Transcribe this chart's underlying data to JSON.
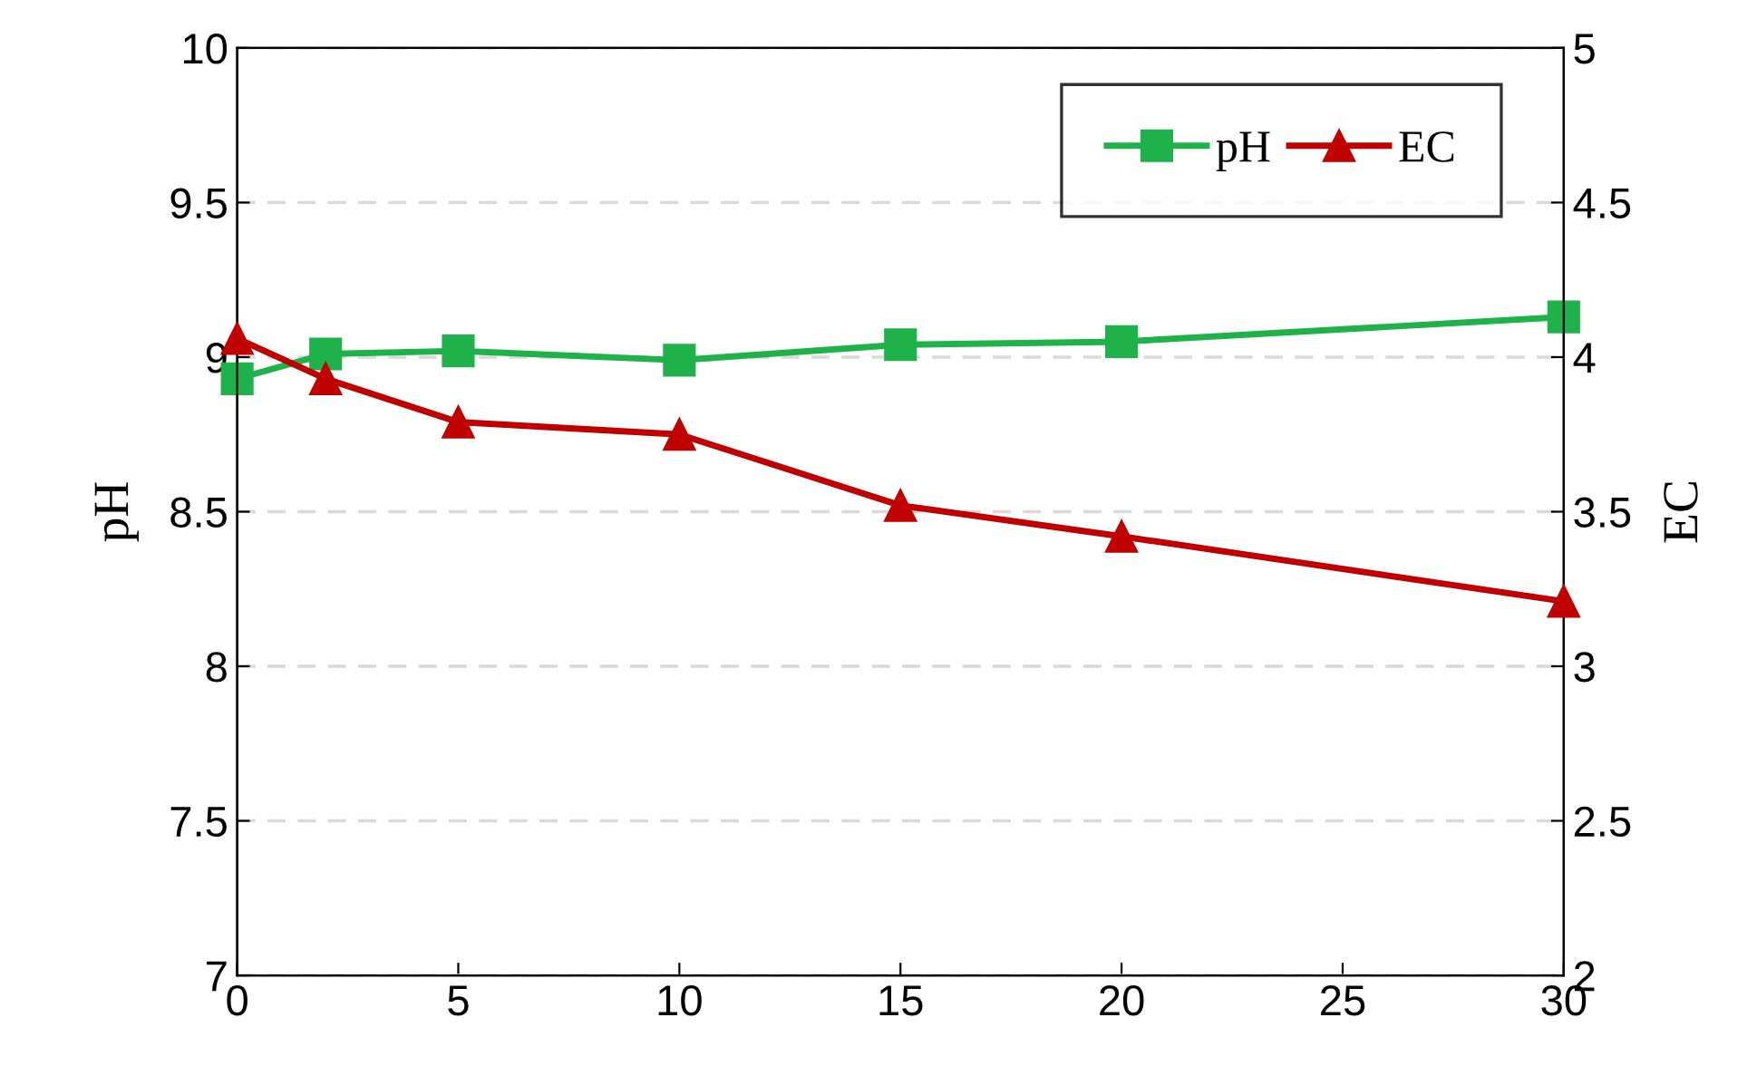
{
  "chart_data": {
    "type": "line",
    "ylabel": "pH",
    "y2label": "EC",
    "x": [
      0,
      2,
      5,
      10,
      15,
      20,
      30
    ],
    "series": [
      {
        "name": "pH",
        "color": "#1fb24a",
        "marker": "square",
        "values": [
          8.93,
          9.01,
          9.02,
          8.99,
          9.04,
          9.05,
          9.13
        ]
      },
      {
        "name": "EC",
        "color": "#c00000",
        "marker": "triangle",
        "axis": "y2",
        "values": [
          4.06,
          3.93,
          3.79,
          3.75,
          3.52,
          3.42,
          3.21
        ]
      }
    ],
    "xlim": [
      0,
      30
    ],
    "xticks": [
      0,
      5,
      10,
      15,
      20,
      25,
      30
    ],
    "ylim": [
      7,
      10
    ],
    "yticks": [
      7,
      7.5,
      8,
      8.5,
      9,
      9.5,
      10
    ],
    "y2lim": [
      2,
      5
    ],
    "y2ticks": [
      2,
      2.5,
      3,
      3.5,
      4,
      4.5,
      5
    ],
    "grid": "y",
    "legend": "top right",
    "line_style": "solid"
  }
}
